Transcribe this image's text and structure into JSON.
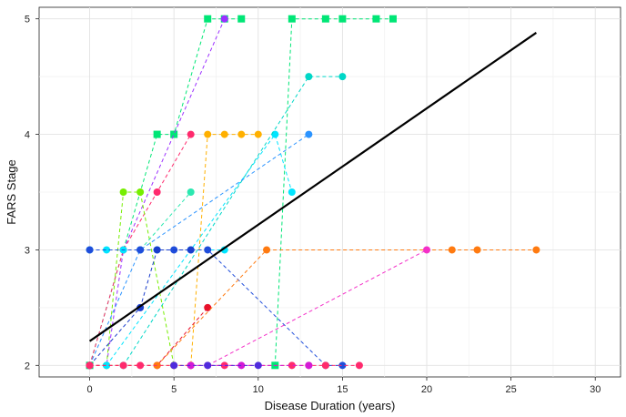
{
  "chart_data": {
    "type": "scatter",
    "title": "",
    "xlabel": "Disease Duration (years)",
    "ylabel": "FARS Stage",
    "xlim": [
      -3,
      31.5
    ],
    "ylim": [
      1.9,
      5.1
    ],
    "xticks": [
      0,
      5,
      10,
      15,
      20,
      25,
      30
    ],
    "yticks": [
      2,
      3,
      4,
      5
    ],
    "grid": true,
    "legend": "none",
    "series": [
      {
        "color": "#00e676",
        "marker": "square",
        "points": [
          [
            0,
            2
          ],
          [
            4,
            4
          ],
          [
            5,
            4
          ],
          [
            7,
            5
          ],
          [
            8,
            5
          ],
          [
            9,
            5
          ]
        ]
      },
      {
        "color": "#00e676",
        "marker": "square",
        "points": [
          [
            11,
            2
          ],
          [
            12,
            5
          ],
          [
            14,
            5
          ],
          [
            15,
            5
          ],
          [
            17,
            5
          ],
          [
            18,
            5
          ]
        ]
      },
      {
        "color": "#9b30ff",
        "marker": "circle",
        "points": [
          [
            0,
            2
          ],
          [
            1,
            2
          ],
          [
            2,
            3
          ],
          [
            8,
            5
          ]
        ]
      },
      {
        "color": "#ff2a6d",
        "marker": "circle",
        "points": [
          [
            0,
            2
          ],
          [
            2,
            3
          ],
          [
            4,
            3.5
          ],
          [
            6,
            4
          ]
        ]
      },
      {
        "color": "#76ee00",
        "marker": "circle",
        "points": [
          [
            1,
            2
          ],
          [
            2,
            3.5
          ],
          [
            3,
            3.5
          ],
          [
            5,
            2
          ]
        ]
      },
      {
        "color": "#ffb000",
        "marker": "circle",
        "points": [
          [
            0,
            2
          ],
          [
            6,
            2
          ],
          [
            7,
            4
          ],
          [
            8,
            4
          ],
          [
            9,
            4
          ],
          [
            10,
            4
          ]
        ]
      },
      {
        "color": "#00e5ff",
        "marker": "circle",
        "points": [
          [
            1,
            2
          ],
          [
            11,
            4
          ],
          [
            12,
            3.5
          ]
        ]
      },
      {
        "color": "#00e5ff",
        "marker": "circle",
        "points": [
          [
            0,
            3
          ],
          [
            1,
            3
          ],
          [
            2,
            3
          ],
          [
            4,
            3
          ],
          [
            6,
            3
          ],
          [
            8,
            3
          ]
        ]
      },
      {
        "color": "#00d7c7",
        "marker": "circle",
        "points": [
          [
            2,
            2
          ],
          [
            13,
            4.5
          ],
          [
            15,
            4.5
          ]
        ]
      },
      {
        "color": "#2be8b0",
        "marker": "circle",
        "points": [
          [
            3,
            3
          ],
          [
            6,
            3.5
          ]
        ]
      },
      {
        "color": "#2a93ff",
        "marker": "circle",
        "points": [
          [
            0,
            2
          ],
          [
            3,
            3
          ],
          [
            13,
            4
          ]
        ]
      },
      {
        "color": "#1f4ddb",
        "marker": "circle",
        "points": [
          [
            0,
            3
          ],
          [
            3,
            3
          ],
          [
            5,
            3
          ],
          [
            7,
            3
          ],
          [
            14,
            2
          ],
          [
            15,
            2
          ]
        ]
      },
      {
        "color": "#1a3dcc",
        "marker": "circle",
        "points": [
          [
            0,
            2
          ],
          [
            3,
            2.5
          ],
          [
            4,
            3
          ],
          [
            6,
            3
          ]
        ]
      },
      {
        "color": "#e8102a",
        "marker": "circle",
        "points": [
          [
            0,
            2
          ],
          [
            4,
            2
          ],
          [
            7,
            2.5
          ]
        ]
      },
      {
        "color": "#ff7a10",
        "marker": "circle",
        "points": [
          [
            4,
            2
          ],
          [
            10.5,
            3
          ],
          [
            21.5,
            3
          ],
          [
            23,
            3
          ],
          [
            26.5,
            3
          ]
        ]
      },
      {
        "color": "#f430c8",
        "marker": "circle",
        "points": [
          [
            7,
            2
          ],
          [
            20,
            3
          ]
        ]
      },
      {
        "color": "#ff2a6d",
        "marker": "circle",
        "points": [
          [
            0,
            2
          ],
          [
            2,
            2
          ],
          [
            3,
            2
          ],
          [
            5,
            2
          ],
          [
            6,
            2
          ],
          [
            8,
            2
          ],
          [
            12,
            2
          ],
          [
            13,
            2
          ],
          [
            14,
            2
          ],
          [
            16,
            2
          ]
        ]
      },
      {
        "color": "#d41ad6",
        "marker": "circle",
        "points": [
          [
            6,
            2
          ],
          [
            9,
            2
          ],
          [
            13,
            2
          ]
        ]
      },
      {
        "color": "#4f2bdd",
        "marker": "circle",
        "points": [
          [
            5,
            2
          ],
          [
            7,
            2
          ],
          [
            10,
            2
          ]
        ]
      }
    ],
    "trend_line": {
      "color": "#000000",
      "x": [
        0,
        26.5
      ],
      "y": [
        2.21,
        4.88
      ]
    }
  }
}
